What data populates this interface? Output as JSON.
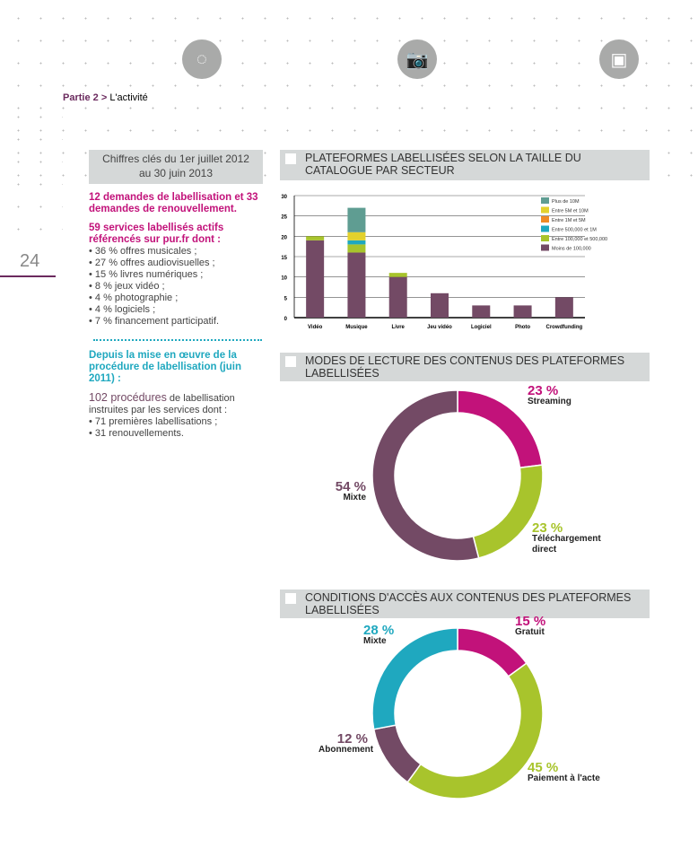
{
  "header": {
    "part": "Partie 2",
    "section": "L'activité",
    "icons": [
      "loading-icon",
      "camera-icon",
      "video-camera-icon"
    ]
  },
  "page_number": "24",
  "keyfigures": {
    "title_line1": "Chiffres clés du 1er juillet 2012",
    "title_line2": "au 30 juin 2013",
    "p1": "12 demandes de labellisation et 33 demandes de renouvellement.",
    "p2": "59 services labellisés actifs référencés sur pur.fr dont :",
    "list1": [
      "• 36 % offres musicales ;",
      "• 27 % offres audiovisuelles ;",
      "• 15 % livres numériques ;",
      "• 8 % jeux vidéo ;",
      "• 4 % photographie ;",
      "• 4 % logiciels ;",
      "• 7 % financement participatif."
    ],
    "p3": "Depuis la mise en œuvre de la procédure de labellisation (juin 2011) :",
    "p4_strong": "102 procédures",
    "p4": " de labellisation instruites par les services dont :",
    "list2": [
      "• 71 premières labellisations ;",
      "• 31 renouvellements."
    ]
  },
  "chart_data": [
    {
      "type": "bar",
      "stacked": true,
      "title": "PLATEFORMES LABELLISÉES SELON LA TAILLE DU CATALOGUE PAR SECTEUR",
      "categories": [
        "Vidéo",
        "Musique",
        "Livre",
        "Jeu vidéo",
        "Logiciel",
        "Photo",
        "Crowdfunding"
      ],
      "ylim": [
        0,
        30
      ],
      "yticks": [
        0,
        5,
        10,
        15,
        20,
        25,
        30
      ],
      "grid": true,
      "legend": "top-right",
      "series": [
        {
          "name": "Moins de 100,000",
          "color": "#734a65",
          "values": [
            19,
            16,
            10,
            6,
            3,
            3,
            5
          ]
        },
        {
          "name": "Entre 100,000 et 500,000",
          "color": "#a8c42c",
          "values": [
            1,
            2,
            1,
            0,
            0,
            0,
            0
          ]
        },
        {
          "name": "Entre 500,000 et 1M",
          "color": "#1fa8bf",
          "values": [
            0,
            1,
            0,
            0,
            0,
            0,
            0
          ]
        },
        {
          "name": "Entre 1M et 5M",
          "color": "#f08a24",
          "values": [
            0,
            0,
            0,
            0,
            0,
            0,
            0
          ]
        },
        {
          "name": "Entre 5M et 10M",
          "color": "#e3d12c",
          "values": [
            0,
            2,
            0,
            0,
            0,
            0,
            0
          ]
        },
        {
          "name": "Plus de 10M",
          "color": "#5f9d92",
          "values": [
            0,
            6,
            0,
            0,
            0,
            0,
            0
          ]
        }
      ]
    },
    {
      "type": "pie",
      "donut": true,
      "title": "MODES DE LECTURE DES CONTENUS DES PLATEFORMES LABELLISÉES",
      "slices": [
        {
          "label": "Streaming",
          "value": 23,
          "display": "23 %",
          "color": "#c2127a"
        },
        {
          "label": "Téléchargement direct",
          "value": 23,
          "display": "23 %",
          "color": "#a8c42c"
        },
        {
          "label": "Mixte",
          "value": 54,
          "display": "54 %",
          "color": "#734a65"
        }
      ]
    },
    {
      "type": "pie",
      "donut": true,
      "title": "CONDITIONS D'ACCÈS AUX CONTENUS DES PLATEFORMES LABELLISÉES",
      "slices": [
        {
          "label": "Gratuit",
          "value": 15,
          "display": "15 %",
          "color": "#c2127a"
        },
        {
          "label": "Paiement à l'acte",
          "value": 45,
          "display": "45 %",
          "color": "#a8c42c"
        },
        {
          "label": "Abonnement",
          "value": 12,
          "display": "12 %",
          "color": "#734a65"
        },
        {
          "label": "Mixte",
          "value": 28,
          "display": "28 %",
          "color": "#1fa8bf"
        }
      ]
    }
  ]
}
